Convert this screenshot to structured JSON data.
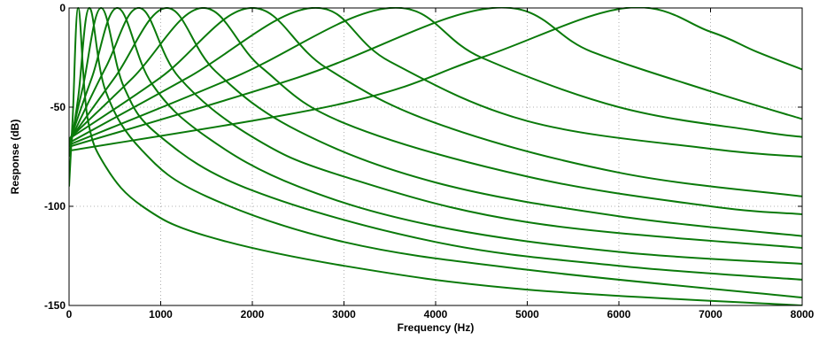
{
  "chart_data": {
    "type": "line",
    "xlabel": "Frequency (Hz)",
    "ylabel": "Response (dB)",
    "xlim": [
      0,
      8000
    ],
    "ylim": [
      -150,
      0
    ],
    "xticks": [
      0,
      1000,
      2000,
      3000,
      4000,
      5000,
      6000,
      7000,
      8000
    ],
    "yticks": [
      0,
      -50,
      -100,
      -150
    ],
    "grid": true,
    "legend": "none",
    "line_color": "#0a7a0a",
    "series": [
      {
        "peak": 100,
        "x": [
          0,
          40,
          100,
          200,
          400,
          800,
          1500,
          3000,
          5000,
          8000
        ],
        "y": [
          -90,
          -55,
          0,
          -55,
          -80,
          -100,
          -115,
          -130,
          -142,
          -150
        ]
      },
      {
        "peak": 220,
        "x": [
          0,
          100,
          220,
          400,
          800,
          1500,
          3000,
          5000,
          8000
        ],
        "y": [
          -75,
          -45,
          0,
          -42,
          -72,
          -95,
          -118,
          -132,
          -146
        ]
      },
      {
        "peak": 350,
        "x": [
          0,
          150,
          350,
          600,
          1000,
          2000,
          4000,
          6000,
          8000
        ],
        "y": [
          -70,
          -40,
          0,
          -40,
          -65,
          -92,
          -118,
          -130,
          -137
        ]
      },
      {
        "peak": 530,
        "x": [
          0,
          250,
          530,
          900,
          1500,
          2500,
          4000,
          6000,
          8000
        ],
        "y": [
          -68,
          -35,
          0,
          -38,
          -65,
          -90,
          -110,
          -123,
          -129
        ]
      },
      {
        "peak": 770,
        "x": [
          0,
          400,
          770,
          1200,
          2000,
          3000,
          5000,
          8000
        ],
        "y": [
          -68,
          -30,
          0,
          -35,
          -65,
          -85,
          -108,
          -121
        ]
      },
      {
        "peak": 1060,
        "x": [
          0,
          500,
          1060,
          1600,
          2500,
          4000,
          6000,
          8000
        ],
        "y": [
          -67,
          -35,
          0,
          -32,
          -62,
          -88,
          -105,
          -115
        ]
      },
      {
        "peak": 1450,
        "x": [
          0,
          700,
          1450,
          2100,
          3000,
          5000,
          7000,
          8000
        ],
        "y": [
          -66,
          -35,
          0,
          -30,
          -58,
          -85,
          -100,
          -104
        ]
      },
      {
        "peak": 1980,
        "x": [
          0,
          1000,
          1980,
          2800,
          4000,
          6000,
          8000
        ],
        "y": [
          -66,
          -35,
          0,
          -30,
          -58,
          -83,
          -95
        ]
      },
      {
        "peak": 2650,
        "x": [
          0,
          1300,
          2650,
          3500,
          5000,
          7000,
          8000
        ],
        "y": [
          -68,
          -35,
          0,
          -27,
          -57,
          -71,
          -75
        ]
      },
      {
        "peak": 3500,
        "x": [
          0,
          1800,
          3500,
          4500,
          6000,
          7500,
          8000
        ],
        "y": [
          -69,
          -35,
          0,
          -25,
          -50,
          -62,
          -65
        ]
      },
      {
        "peak": 4620,
        "x": [
          0,
          2500,
          4620,
          5700,
          7000,
          8000
        ],
        "y": [
          -70,
          -35,
          0,
          -22,
          -42,
          -56
        ]
      },
      {
        "peak": 6080,
        "x": [
          0,
          3000,
          4500,
          6080,
          7000,
          7500,
          8000
        ],
        "y": [
          -72,
          -48,
          -25,
          0,
          -12,
          -22,
          -31
        ]
      }
    ]
  }
}
